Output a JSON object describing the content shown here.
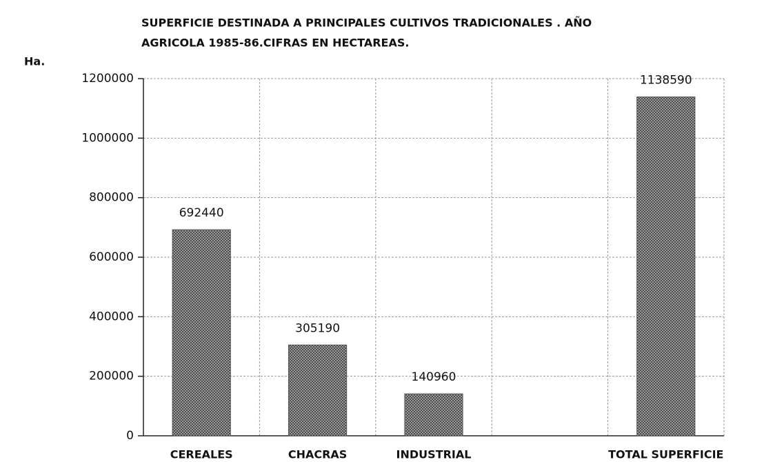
{
  "chart_data": {
    "type": "bar",
    "title": [
      "SUPERFICIE DESTINADA A  PRINCIPALES CULTIVOS TRADICIONALES . AÑO",
      "AGRICOLA 1985-86.CIFRAS EN HECTAREAS."
    ],
    "y_label": "Ha.",
    "categories": [
      "CEREALES",
      "CHACRAS",
      "INDUSTRIAL",
      null,
      "TOTAL SUPERFICIE"
    ],
    "values": [
      692440,
      305190,
      140960,
      null,
      1138590
    ],
    "color": "#555555",
    "ylim": [
      0,
      1200000
    ],
    "yticks": [
      0,
      200000,
      400000,
      600000,
      800000,
      1000000,
      1200000
    ],
    "grid": true
  }
}
